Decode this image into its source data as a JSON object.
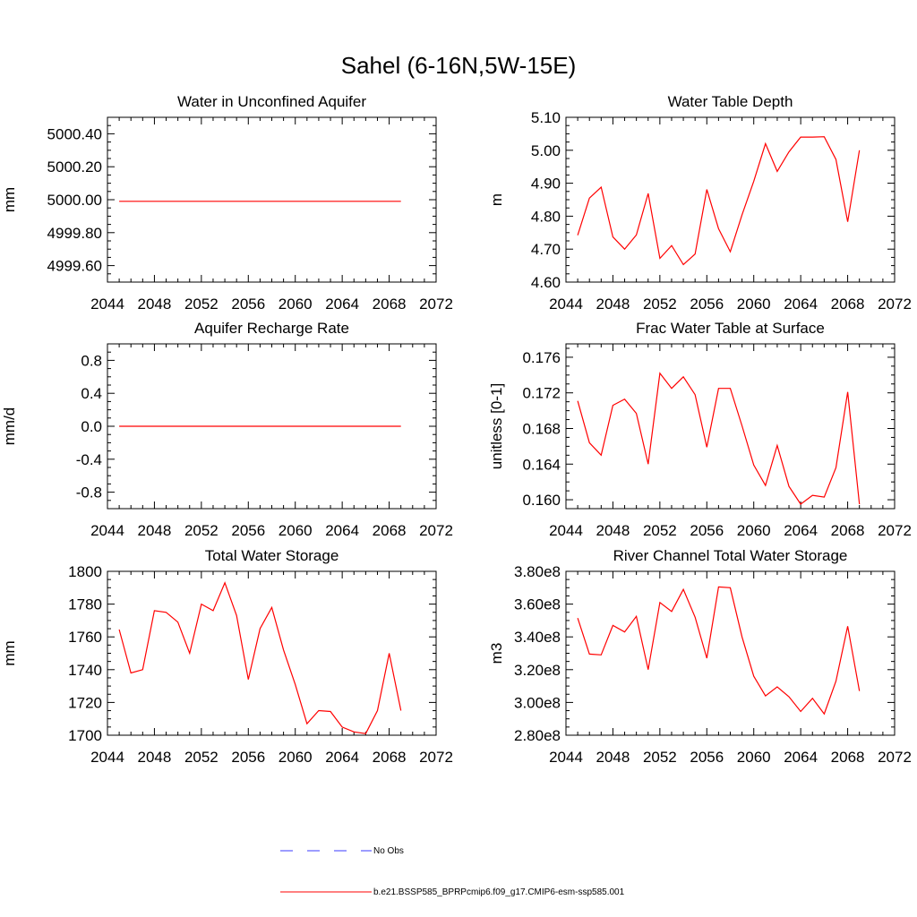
{
  "page": {
    "title": "Sahel (6-16N,5W-15E)"
  },
  "colors": {
    "model": "#ff0000",
    "obs": "#3a3aff",
    "axis": "#000000"
  },
  "legend": {
    "obs_label": "No Obs",
    "model_label": "b.e21.BSSP585_BPRPcmip6.f09_g17.CMIP6-esm-ssp585.001"
  },
  "chart_data": [
    {
      "type": "line",
      "title": "Water in Unconfined Aquifer",
      "ylabel": "mm",
      "xlim": [
        2044,
        2072
      ],
      "ylim": [
        4999.5,
        5000.5
      ],
      "xticks": [
        "2044",
        "2048",
        "2052",
        "2056",
        "2060",
        "2064",
        "2068",
        "2072"
      ],
      "yticks": [
        {
          "v": 4999.6,
          "label": "4999.60"
        },
        {
          "v": 4999.8,
          "label": "4999.80"
        },
        {
          "v": 5000.0,
          "label": "5000.00"
        },
        {
          "v": 5000.2,
          "label": "5000.20"
        },
        {
          "v": 5000.4,
          "label": "5000.40"
        }
      ],
      "series": [
        {
          "x": [
            2045,
            2046,
            2047,
            2048,
            2049,
            2050,
            2051,
            2052,
            2053,
            2054,
            2055,
            2056,
            2057,
            2058,
            2059,
            2060,
            2061,
            2062,
            2063,
            2064,
            2065,
            2066,
            2067,
            2068,
            2069
          ],
          "y": [
            4999.99,
            4999.99,
            4999.99,
            4999.99,
            4999.99,
            4999.99,
            4999.99,
            4999.99,
            4999.99,
            4999.99,
            4999.99,
            4999.99,
            4999.99,
            4999.99,
            4999.99,
            4999.99,
            4999.99,
            4999.99,
            4999.99,
            4999.99,
            4999.99,
            4999.99,
            4999.99,
            4999.99,
            4999.99
          ]
        }
      ]
    },
    {
      "type": "line",
      "title": "Water Table Depth",
      "ylabel": "m",
      "xlim": [
        2044,
        2072
      ],
      "ylim": [
        4.6,
        5.1
      ],
      "xticks": [
        "2044",
        "2048",
        "2052",
        "2056",
        "2060",
        "2064",
        "2068",
        "2072"
      ],
      "yticks": [
        {
          "v": 4.6,
          "label": "4.60"
        },
        {
          "v": 4.7,
          "label": "4.70"
        },
        {
          "v": 4.8,
          "label": "4.80"
        },
        {
          "v": 4.9,
          "label": "4.90"
        },
        {
          "v": 5.0,
          "label": "5.00"
        },
        {
          "v": 5.1,
          "label": "5.10"
        }
      ],
      "series": [
        {
          "x": [
            2045,
            2046,
            2047,
            2048,
            2049,
            2050,
            2051,
            2052,
            2053,
            2054,
            2055,
            2056,
            2057,
            2058,
            2059,
            2060,
            2061,
            2062,
            2063,
            2064,
            2065,
            2066,
            2067,
            2068,
            2069
          ],
          "y": [
            4.742,
            4.855,
            4.888,
            4.737,
            4.7,
            4.743,
            4.869,
            4.672,
            4.711,
            4.653,
            4.685,
            4.881,
            4.762,
            4.692,
            4.804,
            4.906,
            5.02,
            4.936,
            4.995,
            5.04,
            5.04,
            5.041,
            4.972,
            4.783,
            5.0
          ]
        }
      ]
    },
    {
      "type": "line",
      "title": "Aquifer Recharge Rate",
      "ylabel": "mm/d",
      "xlim": [
        2044,
        2072
      ],
      "ylim": [
        -1.0,
        1.0
      ],
      "xticks": [
        "2044",
        "2048",
        "2052",
        "2056",
        "2060",
        "2064",
        "2068",
        "2072"
      ],
      "yticks": [
        {
          "v": -0.8,
          "label": "-0.8"
        },
        {
          "v": -0.4,
          "label": "-0.4"
        },
        {
          "v": 0.0,
          "label": "0.0"
        },
        {
          "v": 0.4,
          "label": "0.4"
        },
        {
          "v": 0.8,
          "label": "0.8"
        }
      ],
      "series": [
        {
          "x": [
            2045,
            2046,
            2047,
            2048,
            2049,
            2050,
            2051,
            2052,
            2053,
            2054,
            2055,
            2056,
            2057,
            2058,
            2059,
            2060,
            2061,
            2062,
            2063,
            2064,
            2065,
            2066,
            2067,
            2068,
            2069
          ],
          "y": [
            0,
            0,
            0,
            0,
            0,
            0,
            0,
            0,
            0,
            0,
            0,
            0,
            0,
            0,
            0,
            0,
            0,
            0,
            0,
            0,
            0,
            0,
            0,
            0,
            0
          ]
        }
      ]
    },
    {
      "type": "line",
      "title": "Frac Water Table at Surface",
      "ylabel": "unitless [0-1]",
      "xlim": [
        2044,
        2072
      ],
      "ylim": [
        0.159,
        0.1775
      ],
      "xticks": [
        "2044",
        "2048",
        "2052",
        "2056",
        "2060",
        "2064",
        "2068",
        "2072"
      ],
      "yticks": [
        {
          "v": 0.16,
          "label": "0.160"
        },
        {
          "v": 0.164,
          "label": "0.164"
        },
        {
          "v": 0.168,
          "label": "0.168"
        },
        {
          "v": 0.172,
          "label": "0.172"
        },
        {
          "v": 0.176,
          "label": "0.176"
        }
      ],
      "series": [
        {
          "x": [
            2045,
            2046,
            2047,
            2048,
            2049,
            2050,
            2051,
            2052,
            2053,
            2054,
            2055,
            2056,
            2057,
            2058,
            2059,
            2060,
            2061,
            2062,
            2063,
            2064,
            2065,
            2066,
            2067,
            2068,
            2069
          ],
          "y": [
            0.1711,
            0.1664,
            0.165,
            0.1706,
            0.1713,
            0.1697,
            0.164,
            0.1742,
            0.1725,
            0.1738,
            0.1718,
            0.1659,
            0.1725,
            0.1725,
            0.1683,
            0.1639,
            0.1616,
            0.1661,
            0.1615,
            0.1595,
            0.1605,
            0.1603,
            0.1636,
            0.1721,
            0.1595
          ]
        }
      ]
    },
    {
      "type": "line",
      "title": "Total Water Storage",
      "ylabel": "mm",
      "xlim": [
        2044,
        2072
      ],
      "ylim": [
        1700,
        1800
      ],
      "xticks": [
        "2044",
        "2048",
        "2052",
        "2056",
        "2060",
        "2064",
        "2068",
        "2072"
      ],
      "yticks": [
        {
          "v": 1700,
          "label": "1700"
        },
        {
          "v": 1720,
          "label": "1720"
        },
        {
          "v": 1740,
          "label": "1740"
        },
        {
          "v": 1760,
          "label": "1760"
        },
        {
          "v": 1780,
          "label": "1780"
        },
        {
          "v": 1800,
          "label": "1800"
        }
      ],
      "series": [
        {
          "x": [
            2045,
            2046,
            2047,
            2048,
            2049,
            2050,
            2051,
            2052,
            2053,
            2054,
            2055,
            2056,
            2057,
            2058,
            2059,
            2060,
            2061,
            2062,
            2063,
            2064,
            2065,
            2066,
            2067,
            2068,
            2069
          ],
          "y": [
            1764.5,
            1738,
            1740,
            1776,
            1775,
            1769,
            1750,
            1780,
            1776,
            1793,
            1773,
            1734,
            1765,
            1778,
            1752,
            1731,
            1707,
            1715,
            1714.5,
            1705,
            1702,
            1701,
            1715,
            1750,
            1715
          ]
        }
      ]
    },
    {
      "type": "line",
      "title": "River Channel Total Water Storage",
      "ylabel": "m3",
      "xlim": [
        2044,
        2072
      ],
      "ylim": [
        280000000,
        380000000
      ],
      "xticks": [
        "2044",
        "2048",
        "2052",
        "2056",
        "2060",
        "2064",
        "2068",
        "2072"
      ],
      "yticks": [
        {
          "v": 280000000,
          "label": "2.80e8"
        },
        {
          "v": 300000000,
          "label": "3.00e8"
        },
        {
          "v": 320000000,
          "label": "3.20e8"
        },
        {
          "v": 340000000,
          "label": "3.40e8"
        },
        {
          "v": 360000000,
          "label": "3.60e8"
        },
        {
          "v": 380000000,
          "label": "3.80e8"
        }
      ],
      "series": [
        {
          "x": [
            2045,
            2046,
            2047,
            2048,
            2049,
            2050,
            2051,
            2052,
            2053,
            2054,
            2055,
            2056,
            2057,
            2058,
            2059,
            2060,
            2061,
            2062,
            2063,
            2064,
            2065,
            2066,
            2067,
            2068,
            2069
          ],
          "y": [
            351500000,
            329500000,
            329000000,
            347000000,
            343000000,
            352500000,
            320000000,
            361000000,
            355500000,
            369000000,
            352000000,
            327000000,
            370500000,
            370000000,
            340000000,
            316000000,
            304000000,
            309500000,
            303500000,
            294500000,
            302500000,
            293000000,
            313000000,
            346500000,
            307000000
          ]
        }
      ]
    }
  ]
}
